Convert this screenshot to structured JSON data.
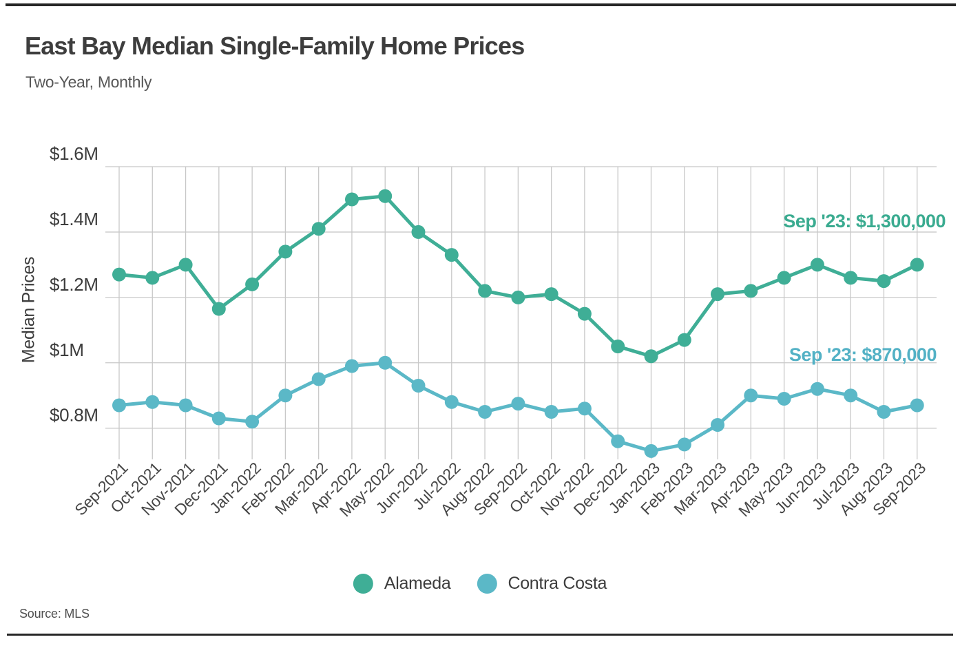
{
  "header": {
    "title": "East Bay Median Single-Family Home Prices",
    "subtitle": "Two-Year, Monthly"
  },
  "footer": {
    "source": "Source: MLS"
  },
  "legend": {
    "items": [
      {
        "label": "Alameda",
        "color": "#3fae96"
      },
      {
        "label": "Contra Costa",
        "color": "#5bb8c7"
      }
    ]
  },
  "chart_data": {
    "type": "line",
    "title": "East Bay Median Single-Family Home Prices",
    "subtitle": "Two-Year, Monthly",
    "xlabel": "",
    "ylabel": "Median Prices",
    "unit": "USD millions",
    "ylim": [
      0.7,
      1.6
    ],
    "grid": true,
    "legend_position": "bottom",
    "yticks": {
      "values": [
        1.6,
        1.4,
        1.2,
        1.0,
        0.8
      ],
      "labels": [
        "$1.6M",
        "$1.4M",
        "$1.2M",
        "$1M",
        "$0.8M"
      ]
    },
    "categories": [
      "Sep-2021",
      "Oct-2021",
      "Nov-2021",
      "Dec-2021",
      "Jan-2022",
      "Feb-2022",
      "Mar-2022",
      "Apr-2022",
      "May-2022",
      "Jun-2022",
      "Jul-2022",
      "Aug-2022",
      "Sep-2022",
      "Oct-2022",
      "Nov-2022",
      "Dec-2022",
      "Jan-2023",
      "Feb-2023",
      "Mar-2023",
      "Apr-2023",
      "May-2023",
      "Jun-2023",
      "Jul-2023",
      "Aug-2023",
      "Sep-2023"
    ],
    "series": [
      {
        "name": "Alameda",
        "color": "#3fae96",
        "annotation_color": "#3aab90",
        "annotation": {
          "text": "Sep '23: $1,300,000"
        },
        "values": [
          1.27,
          1.26,
          1.3,
          1.165,
          1.24,
          1.34,
          1.41,
          1.5,
          1.51,
          1.4,
          1.33,
          1.22,
          1.2,
          1.21,
          1.15,
          1.05,
          1.02,
          1.07,
          1.21,
          1.22,
          1.26,
          1.3,
          1.26,
          1.25,
          1.3
        ]
      },
      {
        "name": "Contra Costa",
        "color": "#5bb8c7",
        "annotation_color": "#52b1c5",
        "annotation": {
          "text": "Sep '23: $870,000"
        },
        "values": [
          0.87,
          0.88,
          0.87,
          0.83,
          0.82,
          0.9,
          0.95,
          0.99,
          1.0,
          0.93,
          0.88,
          0.85,
          0.875,
          0.85,
          0.86,
          0.76,
          0.73,
          0.75,
          0.81,
          0.9,
          0.89,
          0.92,
          0.9,
          0.85,
          0.87
        ]
      }
    ],
    "source": "Source: MLS"
  }
}
